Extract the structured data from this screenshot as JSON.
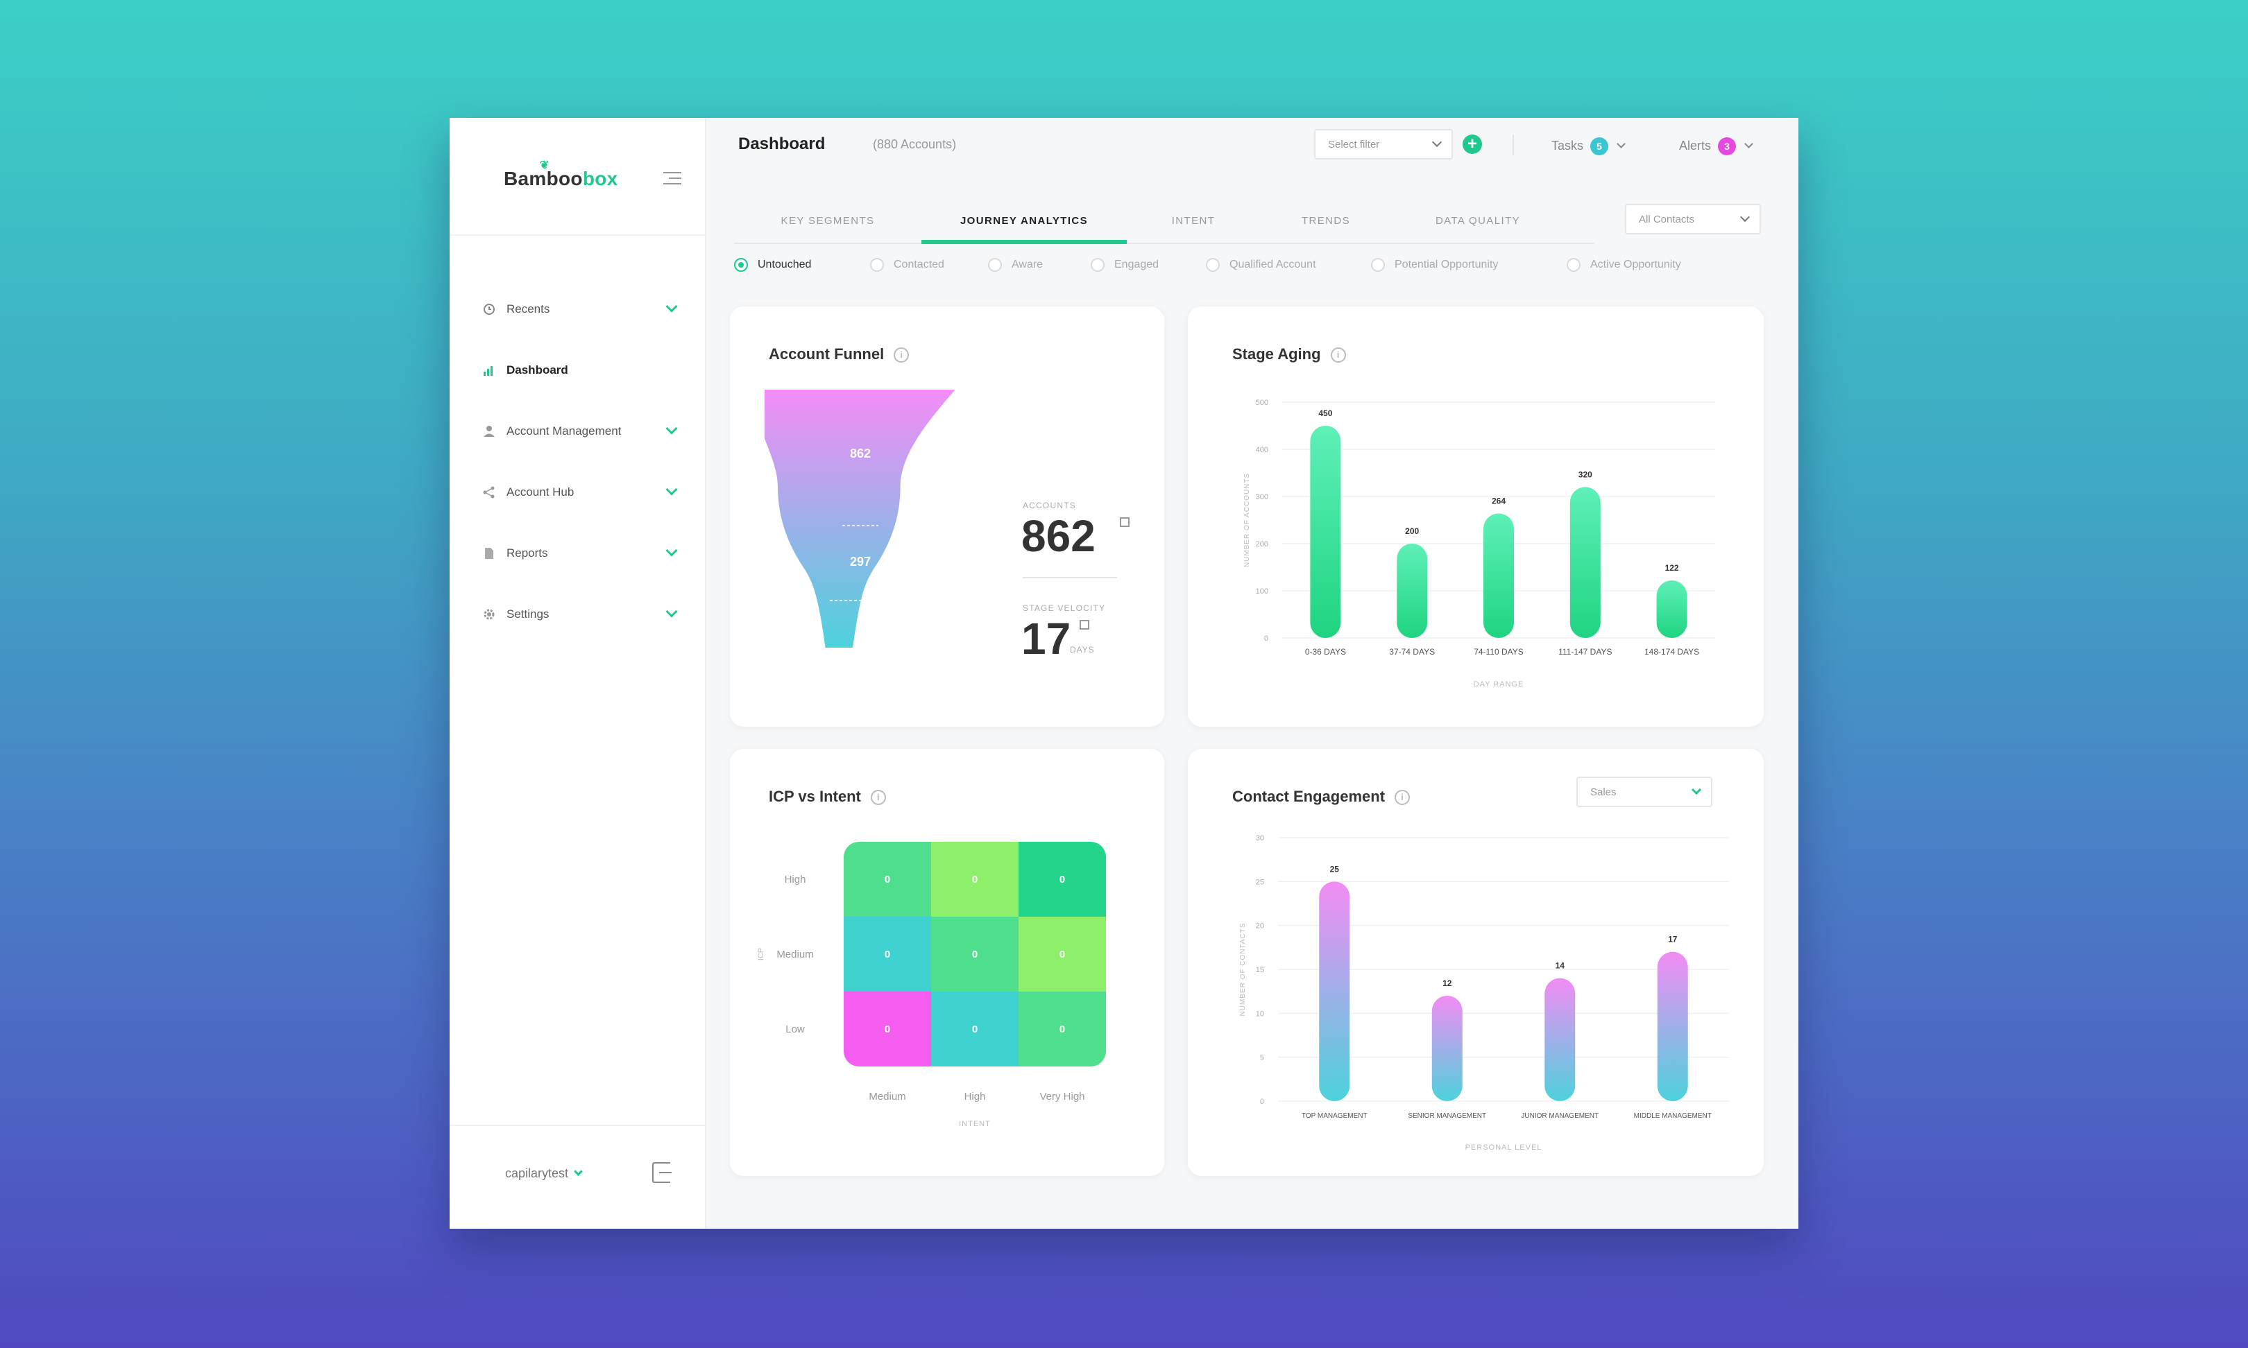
{
  "brand": {
    "logo_main": "Bamboo",
    "logo_accent": "box"
  },
  "sidebar": {
    "items": [
      {
        "label": "Recents",
        "icon": "clock-icon",
        "active": false,
        "expandable": true
      },
      {
        "label": "Dashboard",
        "icon": "bar-chart-icon",
        "active": true,
        "expandable": false
      },
      {
        "label": "Account Management",
        "icon": "user-icon",
        "active": false,
        "expandable": true
      },
      {
        "label": "Account Hub",
        "icon": "share-icon",
        "active": false,
        "expandable": true
      },
      {
        "label": "Reports",
        "icon": "document-icon",
        "active": false,
        "expandable": true
      },
      {
        "label": "Settings",
        "icon": "gear-icon",
        "active": false,
        "expandable": true
      }
    ],
    "user": "capilarytest"
  },
  "header": {
    "title": "Dashboard",
    "subtitle": "(880 Accounts)",
    "filter_placeholder": "Select filter",
    "tasks_label": "Tasks",
    "tasks_count": "5",
    "alerts_label": "Alerts",
    "alerts_count": "3"
  },
  "tabs": [
    {
      "label": "KEY SEGMENTS",
      "active": false
    },
    {
      "label": "JOURNEY ANALYTICS",
      "active": true
    },
    {
      "label": "INTENT",
      "active": false
    },
    {
      "label": "TRENDS",
      "active": false
    },
    {
      "label": "DATA QUALITY",
      "active": false
    }
  ],
  "contacts_filter": "All Contacts",
  "stages": [
    {
      "label": "Untouched",
      "selected": true
    },
    {
      "label": "Contacted",
      "selected": false
    },
    {
      "label": "Aware",
      "selected": false
    },
    {
      "label": "Engaged",
      "selected": false
    },
    {
      "label": "Qualified Account",
      "selected": false
    },
    {
      "label": "Potential Opportunity",
      "selected": false
    },
    {
      "label": "Active Opportunity",
      "selected": false
    }
  ],
  "funnel": {
    "title": "Account Funnel",
    "top_value": "862",
    "mid_value": "297",
    "accounts_label": "ACCOUNTS",
    "accounts_value": "862",
    "velocity_label": "STAGE VELOCITY",
    "velocity_value": "17",
    "velocity_unit": "DAYS",
    "colors": {
      "top": "#f48cf7",
      "bottom": "#4dd2dc"
    }
  },
  "icp": {
    "title": "ICP vs Intent",
    "y_title": "ICP",
    "x_title": "INTENT",
    "rows": [
      "High",
      "Medium",
      "Low"
    ],
    "cols": [
      "Medium",
      "High",
      "Very High"
    ],
    "cells": [
      [
        {
          "v": "0",
          "c": "#4ede8c"
        },
        {
          "v": "0",
          "c": "#8ef06a"
        },
        {
          "v": "0",
          "c": "#22d58a"
        }
      ],
      [
        {
          "v": "0",
          "c": "#3fd1d0"
        },
        {
          "v": "0",
          "c": "#4ede8c"
        },
        {
          "v": "0",
          "c": "#8ef06a"
        }
      ],
      [
        {
          "v": "0",
          "c": "#f55cf0"
        },
        {
          "v": "0",
          "c": "#3fd1d0"
        },
        {
          "v": "0",
          "c": "#4ede8c"
        }
      ]
    ]
  },
  "engagement_filter": "Sales",
  "chart_data": [
    {
      "type": "bar",
      "title": "Stage Aging",
      "xlabel": "DAY RANGE",
      "ylabel": "NUMBER OF ACCOUNTS",
      "categories": [
        "0-36 DAYS",
        "37-74 DAYS",
        "74-110 DAYS",
        "111-147 DAYS",
        "148-174 DAYS"
      ],
      "values": [
        450,
        200,
        264,
        320,
        122
      ],
      "ylim": [
        0,
        500
      ],
      "yticks": [
        0,
        100,
        200,
        300,
        400,
        500
      ],
      "gradient": [
        "#5ef0b8",
        "#1fd481"
      ]
    },
    {
      "type": "bar",
      "title": "Contact Engagement",
      "xlabel": "PERSONAL LEVEL",
      "ylabel": "NUMBER OF CONTACTS",
      "categories": [
        "TOP MANAGEMENT",
        "SENIOR MANAGEMENT",
        "JUNIOR MANAGEMENT",
        "MIDDLE MANAGEMENT"
      ],
      "values": [
        25,
        12,
        14,
        17
      ],
      "ylim": [
        0,
        30
      ],
      "yticks": [
        0,
        5,
        10,
        15,
        20,
        25,
        30
      ],
      "gradient": [
        "#f28cf4",
        "#4dd2dc"
      ]
    }
  ]
}
